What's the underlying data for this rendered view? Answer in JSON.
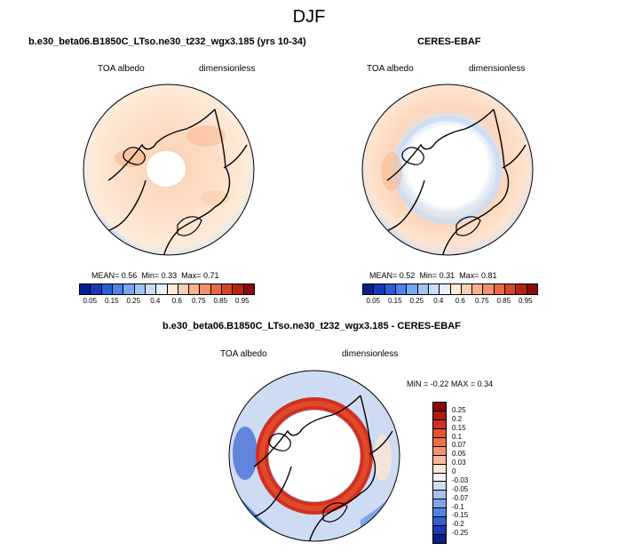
{
  "page": {
    "title": "DJF",
    "panels": [
      {
        "title": "b.e30_beta06.B1850C_LTso.ne30_t232_wgx3.185 (yrs 10-34)",
        "variable": "TOA albedo",
        "units": "dimensionless",
        "stats": {
          "mean_label": "MEAN=",
          "mean": "0.56",
          "min_label": "Min=",
          "min": "0.33",
          "max_label": "Max=",
          "max": "0.71"
        }
      },
      {
        "title": "CERES-EBAF",
        "variable": "TOA albedo",
        "units": "dimensionless",
        "stats": {
          "mean_label": "MEAN=",
          "mean": "0.52",
          "min_label": "Min=",
          "min": "0.31",
          "max_label": "Max=",
          "max": "0.81"
        }
      }
    ],
    "diff_panel": {
      "title": "b.e30_beta06.B1850C_LTso.ne30_t232_wgx3.185 - CERES-EBAF",
      "variable": "TOA albedo",
      "units": "dimensionless",
      "minmax": {
        "min_label": "MIN =",
        "min": "-0.22",
        "max_label": "MAX =",
        "max": "0.34"
      }
    }
  },
  "colorbars": {
    "field": {
      "labels": [
        "0.05",
        "0.15",
        "0.25",
        "0.4",
        "0.6",
        "0.75",
        "0.85",
        "0.95"
      ],
      "colors": [
        "#081d8f",
        "#1538b6",
        "#2a5ed6",
        "#4d83e8",
        "#7aa6f0",
        "#a3c3f5",
        "#c9dcf8",
        "#eaf0fa",
        "#fdebd8",
        "#fbd0b0",
        "#f8b38c",
        "#f39068",
        "#e86a45",
        "#d64628",
        "#b82414",
        "#8a0a0a"
      ]
    },
    "diff": {
      "labels": [
        "0.25",
        "0.2",
        "0.15",
        "0.1",
        "0.07",
        "0.05",
        "0.03",
        "0",
        "-0.03",
        "-0.05",
        "-0.07",
        "-0.1",
        "-0.15",
        "-0.2",
        "-0.25"
      ],
      "colors": [
        "#8a0a0a",
        "#b01a0f",
        "#d03020",
        "#e5502e",
        "#ef7048",
        "#f59272",
        "#f8b89e",
        "#fde6d4",
        "#f2f2f8",
        "#cddcf3",
        "#a7c2ee",
        "#7ea5e8",
        "#5584e0",
        "#3360cf",
        "#1c3ab0",
        "#0b1f8c"
      ]
    }
  }
}
